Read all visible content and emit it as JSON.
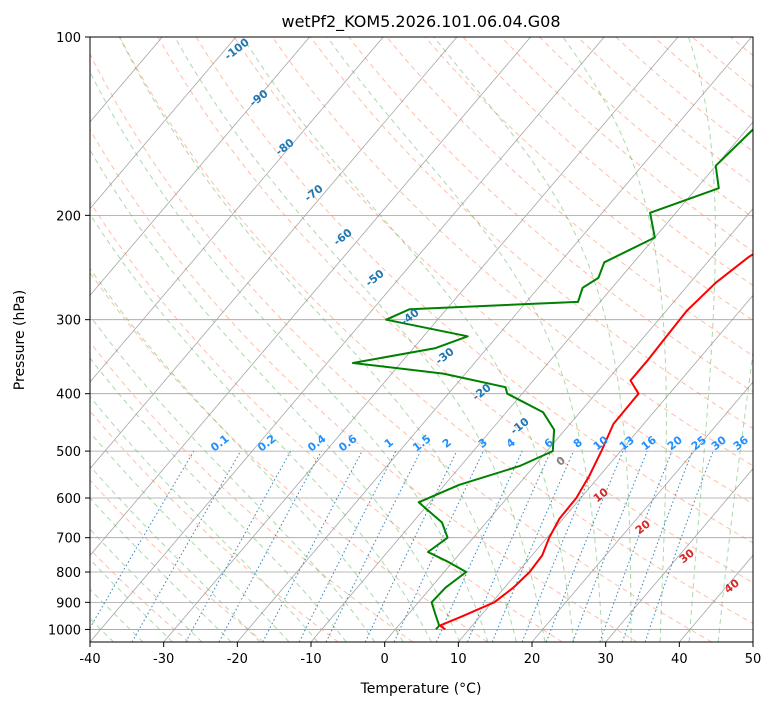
{
  "chart_data": {
    "type": "line",
    "title": "wetPf2_KOM5.2026.101.06.04.G08",
    "xlabel": "Temperature (°C)",
    "ylabel": "Pressure (hPa)",
    "xlim": [
      -40,
      50
    ],
    "ylim": [
      1050,
      100
    ],
    "y_scale": "log",
    "grid": true,
    "x_ticks": [
      -40,
      -30,
      -20,
      -10,
      0,
      10,
      20,
      30,
      40,
      50
    ],
    "y_ticks": [
      100,
      200,
      300,
      400,
      500,
      600,
      700,
      800,
      900,
      1000
    ],
    "colors": {
      "temperature": "#ff0000",
      "dewpoint": "#008000",
      "dry_adiabat": "#ff7f50",
      "moist_adiabat": "#2ca02c",
      "mixing_ratio": "#1f77b4",
      "isotherm": "#808080"
    },
    "series": [
      {
        "key": "temperature",
        "points": [
          {
            "t": 6.8,
            "p": 1000
          },
          {
            "t": 5.6,
            "p": 985
          },
          {
            "t": 7.6,
            "p": 950
          },
          {
            "t": 10.3,
            "p": 900
          },
          {
            "t": 11.2,
            "p": 850
          },
          {
            "t": 11.6,
            "p": 800
          },
          {
            "t": 11.4,
            "p": 750
          },
          {
            "t": 10.3,
            "p": 700
          },
          {
            "t": 9.5,
            "p": 650
          },
          {
            "t": 9.4,
            "p": 600
          },
          {
            "t": 8.6,
            "p": 550
          },
          {
            "t": 7.4,
            "p": 500
          },
          {
            "t": 5.9,
            "p": 450
          },
          {
            "t": 5.8,
            "p": 400
          },
          {
            "t": 3.2,
            "p": 380
          },
          {
            "t": 3.2,
            "p": 350
          },
          {
            "t": 3.0,
            "p": 320
          },
          {
            "t": 2.8,
            "p": 290
          },
          {
            "t": 3.5,
            "p": 260
          },
          {
            "t": 5.0,
            "p": 235
          },
          {
            "t": 8.1,
            "p": 210
          },
          {
            "t": 11.5,
            "p": 190
          },
          {
            "t": 13.4,
            "p": 170
          },
          {
            "t": 15.0,
            "p": 155
          },
          {
            "t": 16.8,
            "p": 140
          },
          {
            "t": 17.8,
            "p": 128
          },
          {
            "t": 20.6,
            "p": 115
          },
          {
            "t": 23.9,
            "p": 100
          }
        ]
      },
      {
        "key": "dewpoint",
        "points": [
          {
            "t": 5.5,
            "p": 1000
          },
          {
            "t": 5.5,
            "p": 985
          },
          {
            "t": 4.0,
            "p": 950
          },
          {
            "t": 1.8,
            "p": 900
          },
          {
            "t": 2.0,
            "p": 850
          },
          {
            "t": 3.0,
            "p": 800
          },
          {
            "t": -0.5,
            "p": 770
          },
          {
            "t": -4.5,
            "p": 740
          },
          {
            "t": -3.5,
            "p": 700
          },
          {
            "t": -6.0,
            "p": 660
          },
          {
            "t": -11.5,
            "p": 610
          },
          {
            "t": -8.0,
            "p": 570
          },
          {
            "t": -2.0,
            "p": 530
          },
          {
            "t": 0.8,
            "p": 500
          },
          {
            "t": -1.5,
            "p": 460
          },
          {
            "t": -5.0,
            "p": 430
          },
          {
            "t": -12.0,
            "p": 400
          },
          {
            "t": -13.0,
            "p": 390
          },
          {
            "t": -23.0,
            "p": 370
          },
          {
            "t": -36.5,
            "p": 355
          },
          {
            "t": -27.0,
            "p": 335
          },
          {
            "t": -24.0,
            "p": 320
          },
          {
            "t": -37.0,
            "p": 300
          },
          {
            "t": -35.0,
            "p": 288
          },
          {
            "t": -13.0,
            "p": 280
          },
          {
            "t": -14.0,
            "p": 265
          },
          {
            "t": -13.0,
            "p": 255
          },
          {
            "t": -14.0,
            "p": 240
          },
          {
            "t": -10.0,
            "p": 218
          },
          {
            "t": -13.5,
            "p": 198
          },
          {
            "t": -7.0,
            "p": 180
          },
          {
            "t": -10.0,
            "p": 165
          },
          {
            "t": -9.0,
            "p": 140
          },
          {
            "t": -1.0,
            "p": 115
          },
          {
            "t": 3.5,
            "p": 100
          }
        ]
      }
    ],
    "dry_adiabat_labels": [
      "0",
      "10",
      "20",
      "30",
      "40"
    ],
    "moist_adiabat_labels": [
      "-100",
      "-90",
      "-80",
      "-70",
      "-60",
      "-50",
      "-40",
      "-30",
      "-20",
      "-10"
    ],
    "mixing_ratio_labels": [
      "0.1",
      "0.2",
      "0.4",
      "0.6",
      "1",
      "1.5",
      "2",
      "3",
      "4",
      "6",
      "8",
      "10",
      "13",
      "16",
      "20",
      "25",
      "30",
      "36"
    ]
  }
}
